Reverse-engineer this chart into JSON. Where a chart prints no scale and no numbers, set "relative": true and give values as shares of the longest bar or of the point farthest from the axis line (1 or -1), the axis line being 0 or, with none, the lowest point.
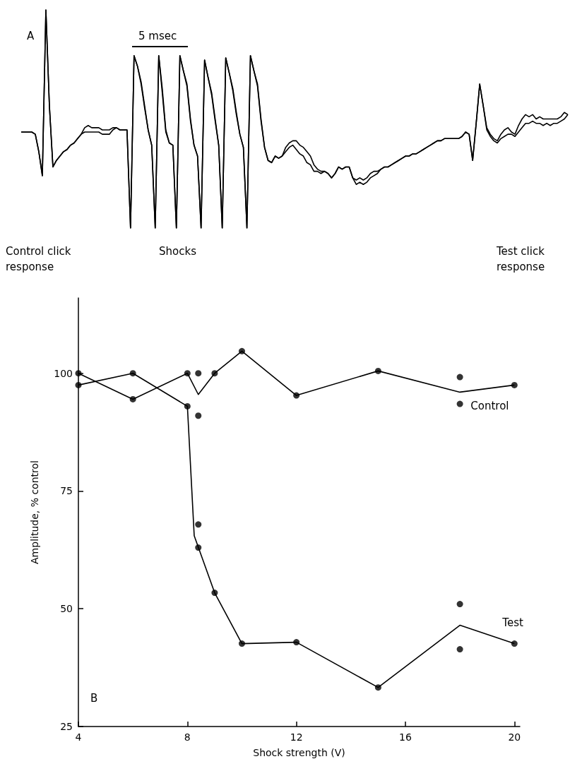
{
  "chart_data": [
    {
      "type": "line",
      "relative": true,
      "annotations": [
        "A",
        "5 msec",
        "Control click response",
        "Shocks",
        "Test click response"
      ],
      "categories": [
        null,
        null,
        null,
        null,
        null,
        null,
        null,
        null,
        null,
        null,
        null,
        null,
        null,
        null,
        null,
        null,
        null,
        null,
        null,
        null,
        null,
        null,
        null,
        null,
        null,
        null,
        null,
        null,
        null,
        null,
        null,
        null,
        null,
        null,
        null,
        null,
        null,
        null,
        null,
        null,
        null,
        null,
        null,
        null,
        null,
        null,
        null,
        null,
        null,
        null,
        null,
        null,
        null,
        null,
        null,
        null,
        null,
        null,
        null,
        null,
        null,
        null,
        null,
        null,
        null,
        null,
        null,
        null,
        null,
        null,
        null,
        null,
        null,
        null,
        null,
        null,
        null,
        null,
        null,
        null,
        null,
        null,
        null,
        null,
        null,
        null,
        null,
        null,
        null,
        null,
        null,
        null,
        null,
        null,
        null,
        null,
        null,
        null,
        null,
        null,
        null,
        null,
        null,
        null,
        null,
        null,
        null,
        null,
        null,
        null,
        null,
        null,
        null,
        null,
        null,
        null,
        null,
        null,
        null,
        null,
        null,
        null,
        null,
        null,
        null,
        null,
        null,
        null,
        null,
        null,
        null,
        null,
        null,
        null,
        null,
        null,
        null,
        null,
        null,
        null,
        null,
        null,
        null,
        null,
        null,
        null,
        null,
        null,
        null,
        null,
        null,
        null,
        null,
        null,
        null,
        null
      ],
      "series": [
        {
          "color": "#000000",
          "values": [
            0.44,
            0.44,
            0.44,
            0.44,
            0.43,
            0.35,
            0.24,
            1.0,
            0.56,
            0.28,
            0.31,
            0.33,
            0.35,
            0.36,
            0.38,
            0.39,
            0.41,
            0.43,
            0.46,
            0.47,
            0.46,
            0.46,
            0.46,
            0.45,
            0.45,
            0.45,
            0.46,
            0.46,
            0.45,
            0.45,
            0.45,
            0,
            0.79,
            0.74,
            0.67,
            0.56,
            0.45,
            0.38,
            0,
            0.79,
            0.64,
            0.45,
            0.39,
            0.38,
            0,
            0.79,
            0.72,
            0.66,
            0.5,
            0.38,
            0.33,
            0,
            0.77,
            0.69,
            0.62,
            0.5,
            0.38,
            0,
            0.78,
            0.71,
            0.64,
            0.53,
            0.43,
            0.37,
            0,
            0.79,
            0.72,
            0.66,
            0.5,
            0.37,
            0.31,
            0.3,
            0.33,
            0.32,
            0.33,
            0.37,
            0.39,
            0.4,
            0.4,
            0.38,
            0.37,
            0.35,
            0.33,
            0.29,
            0.27,
            0.26,
            0.26,
            0.25,
            0.23,
            0.25,
            0.28,
            0.27,
            0.28,
            0.28,
            0.23,
            0.2,
            0.21,
            0.2,
            0.21,
            0.23,
            0.24,
            0.25,
            0.27,
            0.28,
            0.28,
            0.29,
            0.3,
            0.31,
            0.32,
            0.33,
            0.33,
            0.34,
            0.34,
            0.35,
            0.36,
            0.37,
            0.38,
            0.39,
            0.4,
            0.4,
            0.41,
            0.41,
            0.41,
            0.41,
            0.41,
            0.42,
            0.44,
            0.43,
            0.31,
            0.48,
            0.66,
            0.56,
            0.46,
            0.43,
            0.41,
            0.4,
            0.43,
            0.45,
            0.46,
            0.44,
            0.43,
            0.47,
            0.5,
            0.52,
            0.51,
            0.52,
            0.5,
            0.51,
            0.5,
            0.5,
            0.5,
            0.5,
            0.5,
            0.51,
            0.53,
            0.52
          ]
        },
        {
          "color": "#000000",
          "values": [
            0.44,
            0.44,
            0.44,
            0.44,
            0.43,
            0.35,
            0.24,
            1.0,
            0.56,
            0.28,
            0.31,
            0.33,
            0.35,
            0.36,
            0.38,
            0.39,
            0.41,
            0.43,
            0.44,
            0.44,
            0.44,
            0.44,
            0.44,
            0.43,
            0.43,
            0.43,
            0.45,
            0.46,
            0.45,
            0.45,
            0.45,
            0,
            0.79,
            0.74,
            0.66,
            0.55,
            0.45,
            0.38,
            0,
            0.79,
            0.62,
            0.44,
            0.39,
            0.38,
            0,
            0.79,
            0.72,
            0.65,
            0.49,
            0.38,
            0.33,
            0,
            0.77,
            0.69,
            0.61,
            0.49,
            0.38,
            0,
            0.78,
            0.71,
            0.63,
            0.52,
            0.43,
            0.37,
            0,
            0.79,
            0.72,
            0.65,
            0.49,
            0.37,
            0.31,
            0.3,
            0.33,
            0.32,
            0.33,
            0.35,
            0.37,
            0.38,
            0.36,
            0.34,
            0.33,
            0.3,
            0.29,
            0.26,
            0.26,
            0.25,
            0.26,
            0.25,
            0.23,
            0.25,
            0.28,
            0.27,
            0.28,
            0.28,
            0.23,
            0.22,
            0.23,
            0.22,
            0.23,
            0.25,
            0.26,
            0.26,
            0.27,
            0.28,
            0.28,
            0.29,
            0.3,
            0.31,
            0.32,
            0.33,
            0.33,
            0.34,
            0.34,
            0.35,
            0.36,
            0.37,
            0.38,
            0.39,
            0.4,
            0.4,
            0.41,
            0.41,
            0.41,
            0.41,
            0.41,
            0.42,
            0.44,
            0.43,
            0.31,
            0.48,
            0.66,
            0.56,
            0.45,
            0.42,
            0.4,
            0.39,
            0.41,
            0.42,
            0.43,
            0.43,
            0.42,
            0.44,
            0.46,
            0.48,
            0.48,
            0.49,
            0.48,
            0.48,
            0.47,
            0.48,
            0.47,
            0.48,
            0.48,
            0.49,
            0.5,
            0.52
          ]
        }
      ]
    },
    {
      "type": "line",
      "xlabel": "Shock strength (V)",
      "ylabel": "Amplitude, % control",
      "annotations": [
        "B"
      ],
      "xlim": [
        4,
        20.2
      ],
      "xticks": [
        4,
        8,
        12,
        16,
        20
      ],
      "ylim": [
        25,
        116
      ],
      "yticks": [
        25,
        50,
        75,
        100
      ],
      "series": [
        {
          "name": "Control",
          "color": "#000000",
          "x": [
            4,
            6,
            8,
            8.4,
            9,
            10,
            12,
            15,
            18,
            20
          ],
          "values": [
            100,
            94.5,
            100,
            95.5,
            100,
            104.7,
            95.3,
            100.5,
            96,
            97.5
          ]
        },
        {
          "name": "Test",
          "color": "#000000",
          "x": [
            4,
            6,
            8,
            8.25,
            9,
            10,
            12,
            15,
            18,
            20
          ],
          "values": [
            97.5,
            100,
            93,
            65.5,
            53.4,
            42.6,
            42.9,
            33.3,
            46.5,
            42.6
          ]
        },
        {
          "type": "scatter",
          "marker": "circle",
          "color": "#000000",
          "x": [
            4,
            6,
            8,
            8.4,
            8.4,
            9,
            10,
            12,
            15,
            18,
            18,
            20
          ],
          "values": [
            100,
            94.5,
            100,
            100,
            91,
            100,
            104.7,
            95.3,
            100.5,
            99.2,
            93.5,
            97.5
          ]
        },
        {
          "type": "scatter",
          "marker": "circle",
          "color": "#000000",
          "x": [
            4,
            6,
            8,
            8.4,
            8.4,
            9,
            10,
            12,
            15,
            18,
            18,
            20
          ],
          "values": [
            97.5,
            100,
            93,
            67.9,
            63,
            53.4,
            42.6,
            42.9,
            33.3,
            51,
            41.4,
            42.6
          ]
        }
      ]
    }
  ]
}
